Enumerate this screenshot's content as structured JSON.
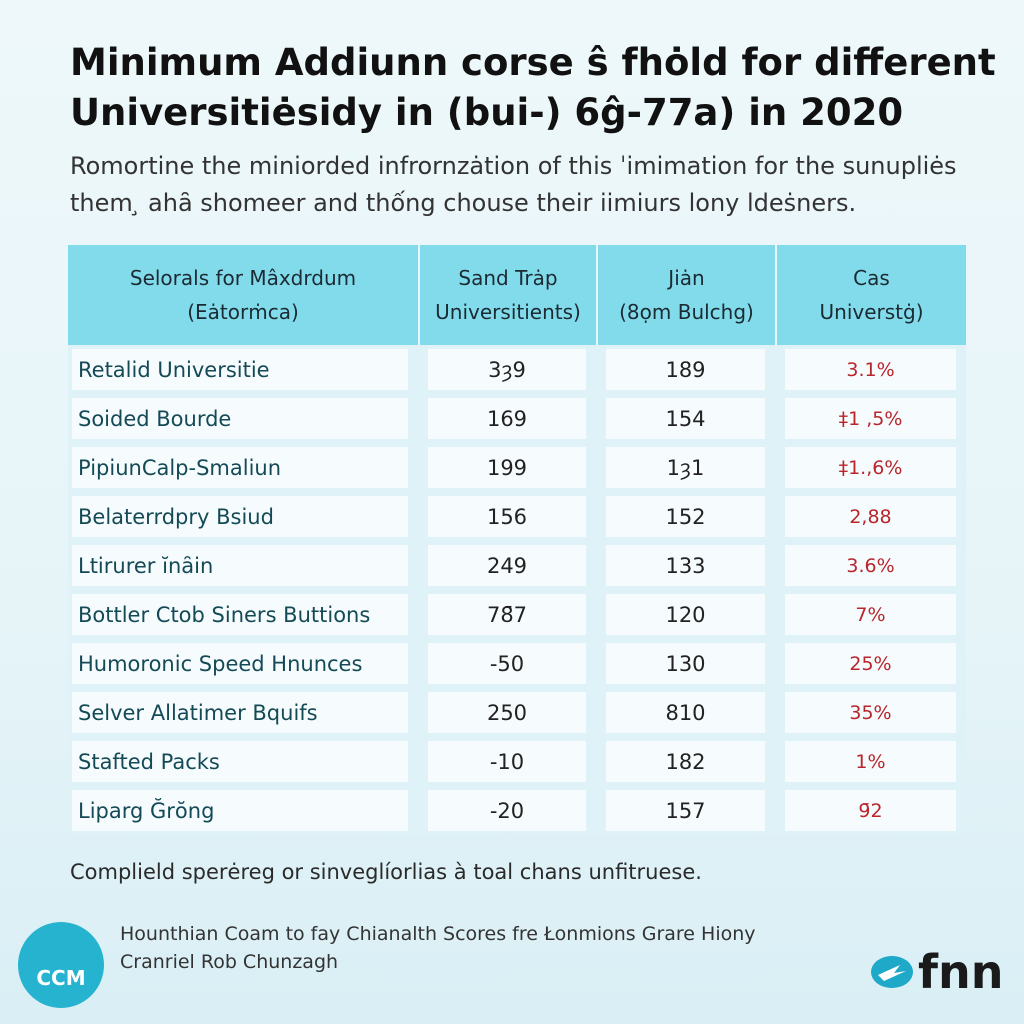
{
  "header": {
    "title": [
      "Minimum Addiunn corse ŝ fhȯld for different",
      "Universitiėsidy in (bui-) 6ĝ-77a) in 2020"
    ],
    "subtitle": [
      "Romortine the miniorded infrornzȧtion of this ˈimimation for the sunupliės",
      "them ̧ ahȃ shomeer and thống chouse their iimiurs lony ldeṡners."
    ]
  },
  "table": {
    "columns": [
      [
        "Selorals for Mâxdrdum",
        "(Eȧtorṁca)"
      ],
      [
        "Sand Trȧp",
        "Universitients)"
      ],
      [
        "Jiȧn",
        "(8ọm Bulchg)"
      ],
      [
        "Cas",
        "Universtġ)"
      ]
    ],
    "rows": [
      [
        "Retalid Universitie",
        "3ȝ9",
        "189",
        "3.1%"
      ],
      [
        "Soided Bourde",
        "169",
        "154",
        "‡1 ,5%"
      ],
      [
        "PipiunCalp-Smaliun",
        "199",
        "1ȝ1",
        "‡1.,6%"
      ],
      [
        "Belaterrdpry Bsiud",
        "156",
        "152",
        "2,88"
      ],
      [
        "Ltirurer ĭnȃin",
        "249",
        "133",
        "3.6%"
      ],
      [
        "Bottler Ctob Siners Buttions",
        "78̄7",
        "120",
        "7%"
      ],
      [
        "Humoronic Speed Hnunces",
        "-50",
        "130",
        "25%"
      ],
      [
        "Selver Allatimer Bquifs",
        "250",
        "810",
        "35%"
      ],
      [
        "Stafted Packs",
        "-10",
        "182",
        "1%"
      ],
      [
        "Liparg Ğrŏng",
        "-20",
        "157",
        "9̄2"
      ]
    ]
  },
  "note": "Complield sperėreg or sinveglíorlias à toal chans unfitruese.",
  "footer": {
    "lines": [
      "Hounthian Coam to fay Chianalth Scores fre Łonmions Grare Hiony",
      "Cranriel Rob Chunzagh"
    ],
    "logo": "CCM",
    "brand": "fnn"
  }
}
